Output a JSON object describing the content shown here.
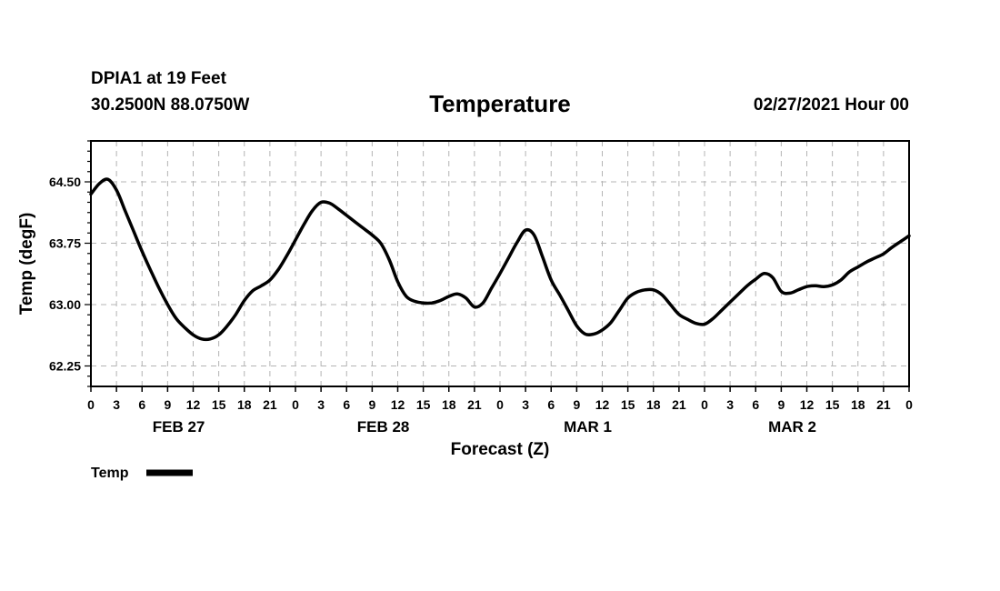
{
  "header": {
    "station": "DPIA1 at 19 Feet",
    "coordinates": "30.2500N 88.0750W",
    "title": "Temperature",
    "timestamp": "02/27/2021 Hour 00"
  },
  "chart_data": {
    "type": "line",
    "title": "Temperature",
    "xlabel": "Forecast (Z)",
    "ylabel": "Temp (degF)",
    "ylim": [
      62.0,
      65.0
    ],
    "yticks": [
      62.25,
      63.0,
      63.75,
      64.5
    ],
    "ytick_labels": [
      "62.25",
      "63.00",
      "63.75",
      "64.50"
    ],
    "xlim": [
      0,
      96
    ],
    "hour_tick_labels": [
      "0",
      "3",
      "6",
      "9",
      "12",
      "15",
      "18",
      "21",
      "0",
      "3",
      "6",
      "9",
      "12",
      "15",
      "18",
      "21",
      "0",
      "3",
      "6",
      "9",
      "12",
      "15",
      "18",
      "21",
      "0",
      "3",
      "6",
      "9",
      "12",
      "15",
      "18",
      "21",
      "0"
    ],
    "day_labels": [
      "FEB 27",
      "FEB 28",
      "MAR 1",
      "MAR 2"
    ],
    "grid": true,
    "legend": "bottom-left",
    "series": [
      {
        "name": "Temp",
        "color": "#000000",
        "x": [
          0,
          1,
          2,
          3,
          4,
          5,
          6,
          7,
          8,
          9,
          10,
          11,
          12,
          13,
          14,
          15,
          16,
          17,
          18,
          19,
          20,
          21,
          22,
          23,
          24,
          25,
          26,
          27,
          28,
          29,
          30,
          31,
          32,
          33,
          34,
          35,
          36,
          37,
          38,
          39,
          40,
          41,
          42,
          43,
          44,
          45,
          46,
          47,
          48,
          49,
          50,
          51,
          52,
          53,
          54,
          55,
          56,
          57,
          58,
          59,
          60,
          61,
          62,
          63,
          64,
          65,
          66,
          67,
          68,
          69,
          70,
          71,
          72,
          73,
          74,
          75,
          76,
          77,
          78,
          79,
          80,
          81,
          82,
          83,
          84,
          85,
          86,
          87,
          88,
          89,
          90,
          91,
          92,
          93,
          94,
          95,
          96
        ],
        "values": [
          64.35,
          64.48,
          64.53,
          64.4,
          64.15,
          63.9,
          63.65,
          63.42,
          63.2,
          63.0,
          62.83,
          62.72,
          62.63,
          62.58,
          62.58,
          62.63,
          62.74,
          62.88,
          63.05,
          63.17,
          63.23,
          63.3,
          63.43,
          63.6,
          63.79,
          63.98,
          64.15,
          64.25,
          64.24,
          64.17,
          64.09,
          64.01,
          63.93,
          63.85,
          63.75,
          63.55,
          63.28,
          63.1,
          63.04,
          63.02,
          63.02,
          63.05,
          63.1,
          63.13,
          63.08,
          62.97,
          63.02,
          63.2,
          63.38,
          63.57,
          63.76,
          63.91,
          63.85,
          63.58,
          63.3,
          63.12,
          62.93,
          62.74,
          62.64,
          62.64,
          62.69,
          62.78,
          62.93,
          63.08,
          63.15,
          63.18,
          63.18,
          63.12,
          63.0,
          62.88,
          62.82,
          62.77,
          62.76,
          62.83,
          62.93,
          63.03,
          63.13,
          63.23,
          63.31,
          63.38,
          63.33,
          63.16,
          63.14,
          63.18,
          63.22,
          63.23,
          63.22,
          63.24,
          63.3,
          63.4,
          63.46,
          63.52,
          63.57,
          63.62,
          63.7,
          63.77,
          63.84
        ]
      }
    ]
  },
  "legend": {
    "label": "Temp"
  }
}
